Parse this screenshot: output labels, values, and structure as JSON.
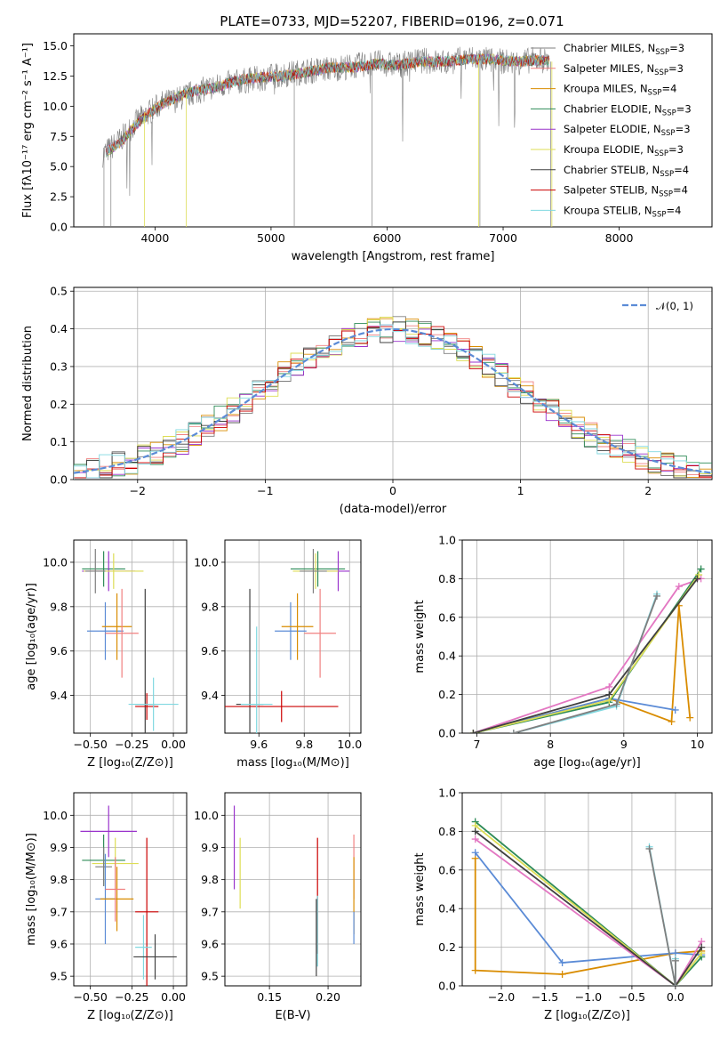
{
  "figure": {
    "title": "PLATE=0733, MJD=52207, FIBERID=0196, z=0.071"
  },
  "models": [
    {
      "key": "chabrier_miles",
      "color": "#7f7f7f",
      "label": "Chabrier MILES, N",
      "sub": "SSP",
      "suffix": "=3"
    },
    {
      "key": "salpeter_miles",
      "color": "#f08080",
      "label": "Salpeter MILES, N",
      "sub": "SSP",
      "suffix": "=3"
    },
    {
      "key": "kroupa_miles",
      "color": "#d98c00",
      "label": "Kroupa MILES, N",
      "sub": "SSP",
      "suffix": "=4"
    },
    {
      "key": "chabrier_elodie",
      "color": "#2e8b57",
      "label": "Chabrier ELODIE, N",
      "sub": "SSP",
      "suffix": "=3"
    },
    {
      "key": "salpeter_elodie",
      "color": "#9932cc",
      "label": "Salpeter ELODIE, N",
      "sub": "SSP",
      "suffix": "=3"
    },
    {
      "key": "kroupa_elodie",
      "color": "#dddd55",
      "label": "Kroupa ELODIE, N",
      "sub": "SSP",
      "suffix": "=3"
    },
    {
      "key": "chabrier_stelib",
      "color": "#404040",
      "label": "Chabrier STELIB, N",
      "sub": "SSP",
      "suffix": "=4"
    },
    {
      "key": "salpeter_stelib",
      "color": "#cc0000",
      "label": "Salpeter STELIB, N",
      "sub": "SSP",
      "suffix": "=4"
    },
    {
      "key": "kroupa_stelib",
      "color": "#80d8e0",
      "label": "Kroupa STELIB, N",
      "sub": "SSP",
      "suffix": "=4"
    }
  ],
  "chart_data": [
    {
      "id": "spectrum",
      "type": "line",
      "xlabel": "wavelength [Angstrom, rest frame]",
      "ylabel": "Flux [fλ10⁻¹⁷ erg cm⁻² s⁻¹ A⁻¹]",
      "xlim": [
        3300,
        8800
      ],
      "ylim": [
        0,
        16
      ],
      "xticks": [
        4000,
        5000,
        6000,
        7000,
        8000
      ],
      "yticks": [
        0.0,
        2.5,
        5.0,
        7.5,
        10.0,
        12.5,
        15.0
      ],
      "legend": "right",
      "observed": {
        "x": [
          3550,
          3700,
          3850,
          3950,
          4050,
          4200,
          4350,
          4500,
          4700,
          4900,
          5100,
          5300,
          5500,
          5700,
          5900,
          6100,
          6300,
          6500,
          6700,
          6900,
          7100,
          7300,
          7400
        ],
        "y": [
          6.0,
          7.2,
          8.8,
          9.5,
          10.2,
          10.6,
          11.2,
          11.6,
          12.0,
          12.3,
          12.6,
          12.9,
          13.1,
          13.3,
          13.6,
          13.4,
          13.8,
          13.6,
          14.0,
          13.8,
          13.6,
          13.9,
          13.7
        ]
      },
      "model_curve": {
        "x": [
          3580,
          3700,
          3850,
          3950,
          4050,
          4200,
          4350,
          4500,
          4700,
          4900,
          5100,
          5300,
          5500,
          5700,
          5900,
          6100,
          6300,
          6500,
          6700,
          6900,
          7100,
          7300,
          7400
        ],
        "y": [
          6.2,
          7.0,
          8.6,
          9.4,
          10.1,
          10.8,
          11.3,
          11.5,
          12.1,
          12.4,
          12.5,
          12.8,
          13.2,
          13.2,
          13.5,
          13.4,
          13.7,
          13.7,
          13.9,
          13.9,
          13.7,
          13.8,
          13.8
        ]
      }
    },
    {
      "id": "residuals",
      "type": "line",
      "xlabel": "(data-model)/error",
      "ylabel": "Normed distribution",
      "xlim": [
        -2.5,
        2.5
      ],
      "ylim": [
        0,
        0.51
      ],
      "xticks": [
        -2,
        -1,
        0,
        1,
        2
      ],
      "yticks": [
        0.0,
        0.1,
        0.2,
        0.3,
        0.4,
        0.5
      ],
      "legend": "top-right",
      "reference": {
        "name": "𝒩(0, 1)",
        "mean": 0,
        "sigma": 1,
        "color": "#5b8bd6"
      },
      "bin_width": 0.1,
      "bin_start": -2.5
    },
    {
      "id": "age_vs_Z",
      "type": "scatter",
      "xlabel": "Z [log₁₀(Z/Z⊙)]",
      "ylabel": "age  [log₁₀(age/yr)]",
      "xlim": [
        -0.6,
        0.08
      ],
      "ylim": [
        9.23,
        10.1
      ],
      "xticks": [
        -0.5,
        -0.25,
        0.0
      ],
      "xticklabels": [
        "−0.50",
        "−0.25",
        "0.00"
      ],
      "yticks": [
        9.4,
        9.6,
        9.8,
        10.0
      ],
      "points": [
        {
          "x": -0.42,
          "y": 9.97,
          "xerr": 0.13,
          "yerr": 0.08,
          "color": "#2e8b57"
        },
        {
          "x": -0.39,
          "y": 9.96,
          "xerr": 0.16,
          "yerr": 0.09,
          "color": "#9932cc"
        },
        {
          "x": -0.36,
          "y": 9.96,
          "xerr": 0.18,
          "yerr": 0.08,
          "color": "#dddd55"
        },
        {
          "x": -0.47,
          "y": 9.96,
          "xerr": 0.06,
          "yerr": 0.1,
          "color": "#7f7f7f"
        },
        {
          "x": -0.41,
          "y": 9.69,
          "xerr": 0.11,
          "yerr": 0.13,
          "color": "#5b8bd6"
        },
        {
          "x": -0.34,
          "y": 9.71,
          "xerr": 0.09,
          "yerr": 0.15,
          "color": "#d98c00"
        },
        {
          "x": -0.31,
          "y": 9.68,
          "xerr": 0.1,
          "yerr": 0.2,
          "color": "#f08080"
        },
        {
          "x": -0.17,
          "y": 9.36,
          "xerr": 0.06,
          "yerr": 0.52,
          "color": "#404040"
        },
        {
          "x": -0.16,
          "y": 9.35,
          "xerr": 0.07,
          "yerr": 0.06,
          "color": "#cc0000"
        },
        {
          "x": -0.12,
          "y": 9.36,
          "xerr": 0.15,
          "yerr": 0.12,
          "color": "#80d8e0"
        }
      ]
    },
    {
      "id": "age_vs_mass",
      "type": "scatter",
      "xlabel": "mass [log₁₀(M/M⊙)]",
      "ylabel": "",
      "xlim": [
        9.45,
        10.05
      ],
      "ylim": [
        9.23,
        10.1
      ],
      "xticks": [
        9.6,
        9.8,
        10.0
      ],
      "yticks": [
        9.4,
        9.6,
        9.8,
        10.0
      ],
      "points": [
        {
          "x": 9.86,
          "y": 9.97,
          "xerr": 0.12,
          "yerr": 0.08,
          "color": "#2e8b57"
        },
        {
          "x": 9.95,
          "y": 9.96,
          "xerr": 0.05,
          "yerr": 0.09,
          "color": "#9932cc"
        },
        {
          "x": 9.85,
          "y": 9.96,
          "xerr": 0.1,
          "yerr": 0.08,
          "color": "#dddd55"
        },
        {
          "x": 9.84,
          "y": 9.96,
          "xerr": 0.06,
          "yerr": 0.1,
          "color": "#7f7f7f"
        },
        {
          "x": 9.74,
          "y": 9.69,
          "xerr": 0.07,
          "yerr": 0.13,
          "color": "#5b8bd6"
        },
        {
          "x": 9.77,
          "y": 9.71,
          "xerr": 0.07,
          "yerr": 0.15,
          "color": "#d98c00"
        },
        {
          "x": 9.87,
          "y": 9.68,
          "xerr": 0.07,
          "yerr": 0.2,
          "color": "#f08080"
        },
        {
          "x": 9.56,
          "y": 9.36,
          "xerr": 0.06,
          "yerr": 0.52,
          "color": "#404040"
        },
        {
          "x": 9.7,
          "y": 9.35,
          "xerr": 0.25,
          "yerr": 0.07,
          "color": "#cc0000"
        },
        {
          "x": 9.59,
          "y": 9.36,
          "xerr": 0.07,
          "yerr": 0.35,
          "color": "#80d8e0"
        }
      ]
    },
    {
      "id": "mass_weight_vs_age",
      "type": "line",
      "xlabel": "age  [log₁₀(age/yr)]",
      "ylabel": "mass weight",
      "xlim": [
        6.8,
        10.2
      ],
      "ylim": [
        0,
        1
      ],
      "xticks": [
        7,
        8,
        9,
        10
      ],
      "yticks": [
        0.0,
        0.2,
        0.4,
        0.6,
        0.8,
        1.0
      ],
      "series": [
        {
          "color": "#d98c00",
          "x": [
            6.95,
            8.8,
            9.65,
            9.75,
            9.9
          ],
          "y": [
            0.0,
            0.18,
            0.06,
            0.66,
            0.08
          ]
        },
        {
          "color": "#5b8bd6",
          "x": [
            6.95,
            8.8,
            9.7
          ],
          "y": [
            0.0,
            0.18,
            0.12
          ]
        },
        {
          "color": "#e377c2",
          "x": [
            6.95,
            8.8,
            9.75,
            10.05
          ],
          "y": [
            0.0,
            0.24,
            0.76,
            0.8
          ]
        },
        {
          "color": "#2e8b57",
          "x": [
            6.95,
            8.8,
            10.05
          ],
          "y": [
            0.0,
            0.16,
            0.85
          ]
        },
        {
          "color": "#dddd55",
          "x": [
            6.95,
            8.8,
            10.02
          ],
          "y": [
            0.0,
            0.17,
            0.82
          ]
        },
        {
          "color": "#404040",
          "x": [
            6.95,
            8.8,
            10.0
          ],
          "y": [
            0.0,
            0.2,
            0.8
          ]
        },
        {
          "color": "#80d8e0",
          "x": [
            7.5,
            8.9,
            9.45
          ],
          "y": [
            0.0,
            0.14,
            0.72
          ]
        },
        {
          "color": "#7f7f7f",
          "x": [
            7.5,
            8.9,
            9.45
          ],
          "y": [
            0.0,
            0.15,
            0.71
          ]
        }
      ]
    },
    {
      "id": "mass_vs_Z",
      "type": "scatter",
      "xlabel": "Z [log₁₀(Z/Z⊙)]",
      "ylabel": "mass [log₁₀(M/M⊙)]",
      "xlim": [
        -0.6,
        0.08
      ],
      "ylim": [
        9.47,
        10.07
      ],
      "xticks": [
        -0.5,
        -0.25,
        0.0
      ],
      "xticklabels": [
        "−0.50",
        "−0.25",
        "0.00"
      ],
      "yticks": [
        9.5,
        9.6,
        9.7,
        9.8,
        9.9,
        10.0
      ],
      "points": [
        {
          "x": -0.39,
          "y": 9.95,
          "xerr": 0.17,
          "yerr": 0.08,
          "color": "#9932cc"
        },
        {
          "x": -0.35,
          "y": 9.85,
          "xerr": 0.14,
          "yerr": 0.08,
          "color": "#dddd55"
        },
        {
          "x": -0.42,
          "y": 9.86,
          "xerr": 0.13,
          "yerr": 0.08,
          "color": "#2e8b57"
        },
        {
          "x": -0.42,
          "y": 9.84,
          "xerr": 0.05,
          "yerr": 0.06,
          "color": "#7f7f7f"
        },
        {
          "x": -0.41,
          "y": 9.74,
          "xerr": 0.06,
          "yerr": 0.14,
          "color": "#5b8bd6"
        },
        {
          "x": -0.34,
          "y": 9.74,
          "xerr": 0.1,
          "yerr": 0.1,
          "color": "#d98c00"
        },
        {
          "x": -0.35,
          "y": 9.77,
          "xerr": 0.06,
          "yerr": 0.1,
          "color": "#f08080"
        },
        {
          "x": -0.16,
          "y": 9.7,
          "xerr": 0.07,
          "yerr": 0.23,
          "color": "#cc0000"
        },
        {
          "x": -0.18,
          "y": 9.59,
          "xerr": 0.05,
          "yerr": 0.1,
          "color": "#80d8e0"
        },
        {
          "x": -0.11,
          "y": 9.56,
          "xerr": 0.13,
          "yerr": 0.07,
          "color": "#404040"
        }
      ]
    },
    {
      "id": "mass_vs_EBV",
      "type": "scatter",
      "xlabel": "E(B-V)",
      "ylabel": "",
      "xlim": [
        0.112,
        0.228
      ],
      "ylim": [
        9.47,
        10.07
      ],
      "xticks": [
        0.15,
        0.2
      ],
      "xticklabels": [
        "0.15",
        "0.20"
      ],
      "yticks": [
        9.5,
        9.6,
        9.7,
        9.8,
        9.9,
        10.0
      ],
      "points": [
        {
          "x": 0.12,
          "y": 9.9,
          "xerr": 0,
          "yerr": 0.13,
          "color": "#9932cc"
        },
        {
          "x": 0.125,
          "y": 9.82,
          "xerr": 0,
          "yerr": 0.11,
          "color": "#dddd55"
        },
        {
          "x": 0.191,
          "y": 9.75,
          "xerr": 0,
          "yerr": 0.18,
          "color": "#cc0000"
        },
        {
          "x": 0.19,
          "y": 9.62,
          "xerr": 0,
          "yerr": 0.12,
          "color": "#404040"
        },
        {
          "x": 0.191,
          "y": 9.64,
          "xerr": 0,
          "yerr": 0.11,
          "color": "#80d8e0"
        },
        {
          "x": 0.222,
          "y": 9.84,
          "xerr": 0,
          "yerr": 0.1,
          "color": "#f08080"
        },
        {
          "x": 0.222,
          "y": 9.75,
          "xerr": 0,
          "yerr": 0.12,
          "color": "#d98c00"
        },
        {
          "x": 0.222,
          "y": 9.65,
          "xerr": 0,
          "yerr": 0.05,
          "color": "#5b8bd6"
        }
      ]
    },
    {
      "id": "mass_weight_vs_Z",
      "type": "line",
      "xlabel": "Z [log₁₀(Z/Z⊙)]",
      "ylabel": "mass weight",
      "xlim": [
        -2.45,
        0.42
      ],
      "ylim": [
        0,
        1
      ],
      "xticks": [
        -2.0,
        -1.5,
        -1.0,
        -0.5,
        0.0
      ],
      "xticklabels": [
        "−2.0",
        "−1.5",
        "−1.0",
        "−0.5",
        "0.0"
      ],
      "yticks": [
        0.0,
        0.2,
        0.4,
        0.6,
        0.8,
        1.0
      ],
      "series": [
        {
          "color": "#d98c00",
          "x": [
            -2.3,
            -2.3,
            -1.3,
            0.0,
            0.3
          ],
          "y": [
            0.66,
            0.08,
            0.06,
            0.17,
            0.18
          ]
        },
        {
          "color": "#5b8bd6",
          "x": [
            -2.3,
            -1.3,
            0.0,
            0.3
          ],
          "y": [
            0.69,
            0.12,
            0.17,
            0.16
          ]
        },
        {
          "color": "#e377c2",
          "x": [
            -2.3,
            0.0,
            0.3
          ],
          "y": [
            0.76,
            0.0,
            0.23
          ]
        },
        {
          "color": "#2e8b57",
          "x": [
            -2.3,
            0.0,
            0.3
          ],
          "y": [
            0.85,
            0.0,
            0.15
          ]
        },
        {
          "color": "#dddd55",
          "x": [
            -2.3,
            0.0,
            0.3
          ],
          "y": [
            0.83,
            0.0,
            0.17
          ]
        },
        {
          "color": "#404040",
          "x": [
            -2.3,
            0.0,
            0.3
          ],
          "y": [
            0.8,
            0.0,
            0.2
          ]
        },
        {
          "color": "#80d8e0",
          "x": [
            -0.3,
            0.0,
            0.0
          ],
          "y": [
            0.72,
            0.0,
            0.14
          ]
        },
        {
          "color": "#7f7f7f",
          "x": [
            -0.3,
            0.0,
            0.0
          ],
          "y": [
            0.71,
            0.0,
            0.13
          ]
        }
      ]
    }
  ]
}
